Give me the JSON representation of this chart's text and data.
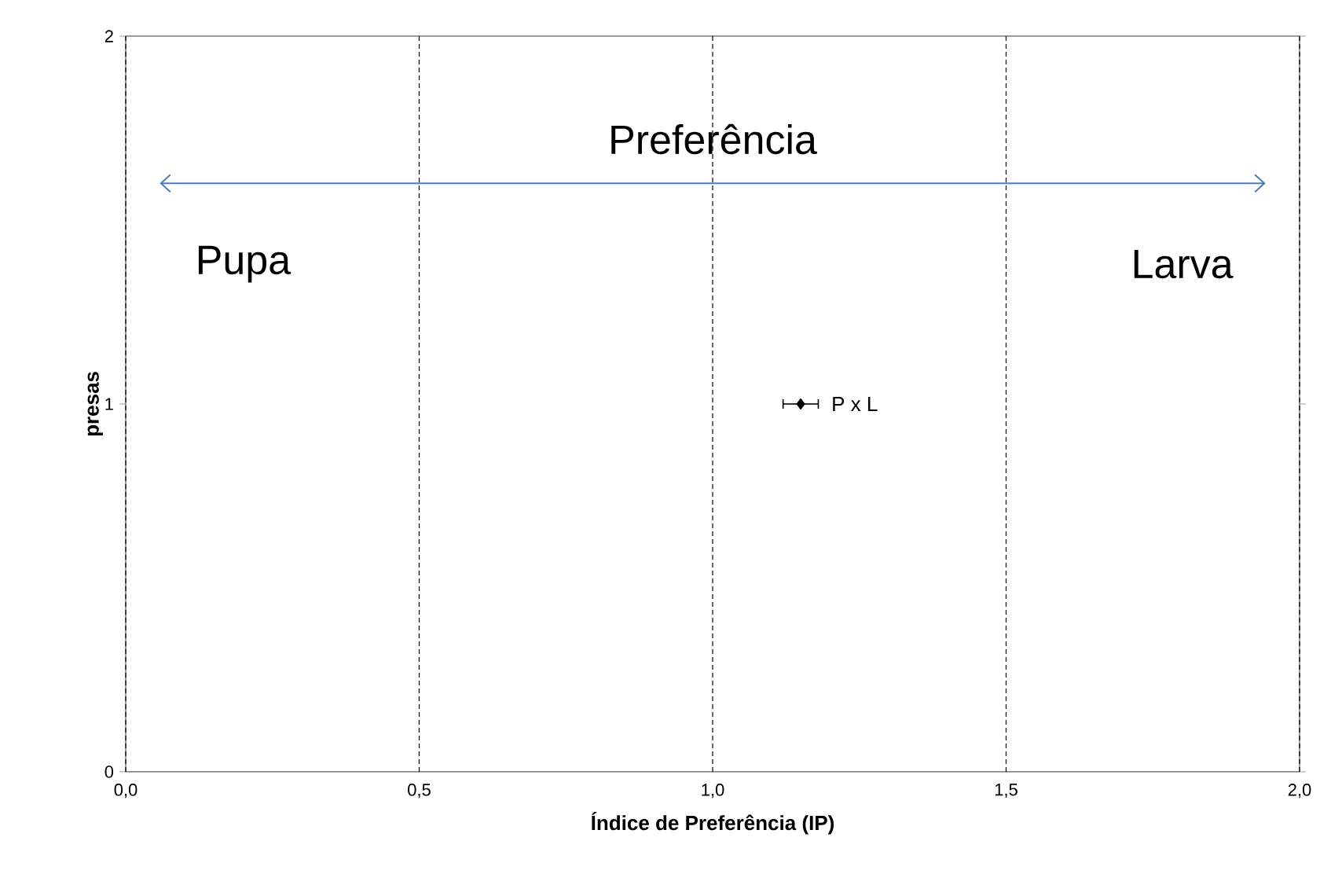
{
  "chart_data": {
    "type": "scatter",
    "xlabel": "Índice de Preferência (IP)",
    "ylabel": "presas",
    "annotations": [
      "Preferência",
      "Pupa",
      "Larva"
    ],
    "series": [
      {
        "name": "P x L",
        "color": "#000000",
        "x": [
          1.15
        ],
        "values": [
          1
        ],
        "xerrors": [
          0.03
        ]
      },
      {
        "type": "line",
        "marker": "none",
        "color": "#4a7ebb",
        "x": [
          0.06,
          1.94
        ],
        "values": [
          1.6,
          1.6
        ]
      }
    ],
    "xlim": [
      0,
      2
    ],
    "ylim": [
      0,
      2
    ],
    "xticks": [
      {
        "value": 0,
        "label": "0,0"
      },
      {
        "value": 0.5,
        "label": "0,5"
      },
      {
        "value": 1,
        "label": "1,0"
      },
      {
        "value": 1.5,
        "label": "1,5"
      },
      {
        "value": 2,
        "label": "2,0"
      }
    ],
    "yticks": [
      0,
      1,
      2
    ],
    "grid": "x",
    "marker": "diamond",
    "legend": false
  }
}
